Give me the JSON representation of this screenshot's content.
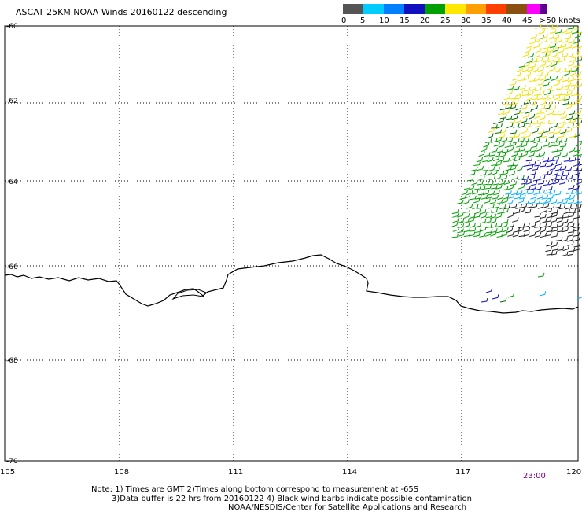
{
  "title": "ASCAT 25KM NOAA Winds 20160122 descending",
  "legend": {
    "unit": ">50 knots",
    "labels": [
      "0",
      "5",
      "10",
      "15",
      "20",
      "25",
      "30",
      "35",
      "40",
      "45"
    ],
    "colors": [
      "#555555",
      "#00ccff",
      "#0080ff",
      "#1010c0",
      "#00a000",
      "#ffe800",
      "#ffa000",
      "#ff4000",
      "#8a5010",
      "#ff00ff",
      "#600090"
    ]
  },
  "axes": {
    "lat_labels": [
      "-60",
      "-62",
      "-64",
      "-66",
      "-68",
      "-70"
    ],
    "lon_labels": [
      "105",
      "108",
      "111",
      "114",
      "117",
      "120"
    ]
  },
  "time_label": "23:00",
  "notes": [
    "Note: 1) Times are GMT 2)Times along bottom correspond to measurement at -65S",
    "3)Data buffer is 22 hrs from 20160122 4) Black wind barbs indicate possible contamination",
    "NOAA/NESDIS/Center for Satellite Applications and Research"
  ],
  "colors": {
    "frame": "#000000",
    "coast": "#000000"
  }
}
